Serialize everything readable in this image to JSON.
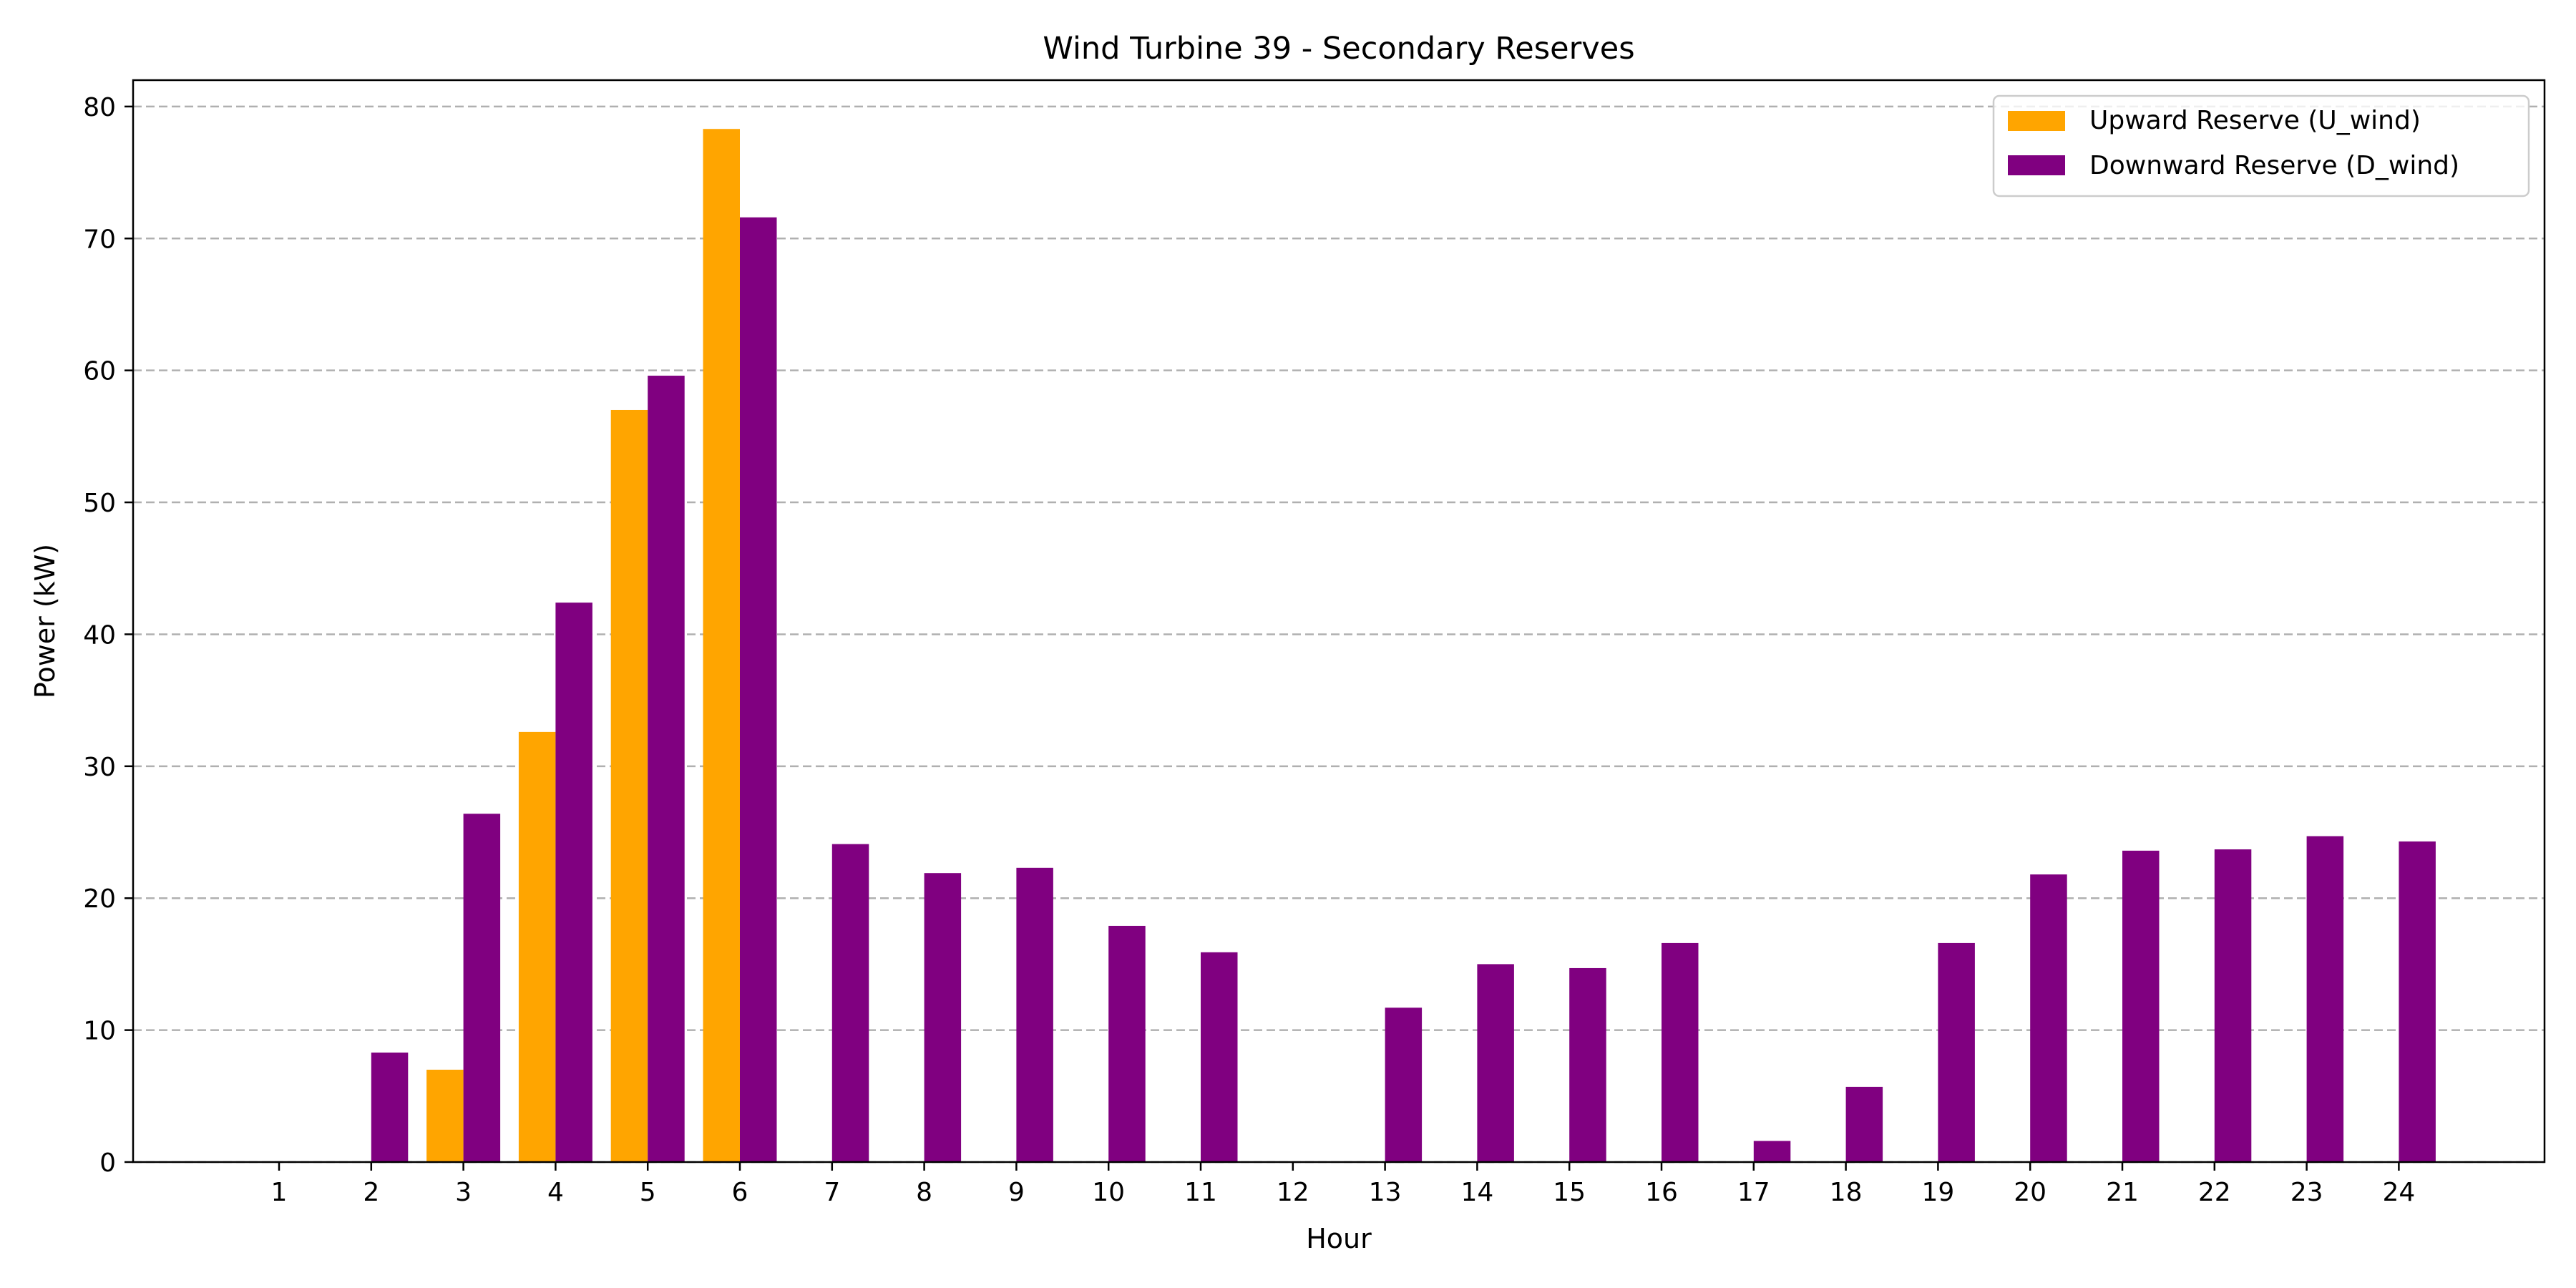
{
  "chart_data": {
    "type": "bar",
    "title": "Wind Turbine 39 - Secondary Reserves",
    "xlabel": "Hour",
    "ylabel": "Power (kW)",
    "categories": [
      "1",
      "2",
      "3",
      "4",
      "5",
      "6",
      "7",
      "8",
      "9",
      "10",
      "11",
      "12",
      "13",
      "14",
      "15",
      "16",
      "17",
      "18",
      "19",
      "20",
      "21",
      "22",
      "23",
      "24"
    ],
    "series": [
      {
        "name": "Upward Reserve (U_wind)",
        "color": "#FFA500",
        "values": [
          0,
          0,
          7.0,
          32.6,
          57.0,
          78.3,
          0,
          0,
          0,
          0,
          0,
          0,
          0,
          0,
          0,
          0,
          0,
          0,
          0,
          0,
          0,
          0,
          0,
          0
        ]
      },
      {
        "name": "Downward Reserve (D_wind)",
        "color": "#800080",
        "values": [
          0,
          8.3,
          26.4,
          42.4,
          59.6,
          71.6,
          24.1,
          21.9,
          22.3,
          17.9,
          15.9,
          0,
          11.7,
          15.0,
          14.7,
          16.6,
          1.6,
          5.7,
          16.6,
          21.8,
          23.6,
          23.7,
          24.7,
          24.3
        ]
      }
    ],
    "ylim": [
      0,
      82
    ],
    "yticks": [
      0,
      10,
      20,
      30,
      40,
      50,
      60,
      70,
      80
    ],
    "grid": "y-dashed",
    "legend": "top-right"
  }
}
